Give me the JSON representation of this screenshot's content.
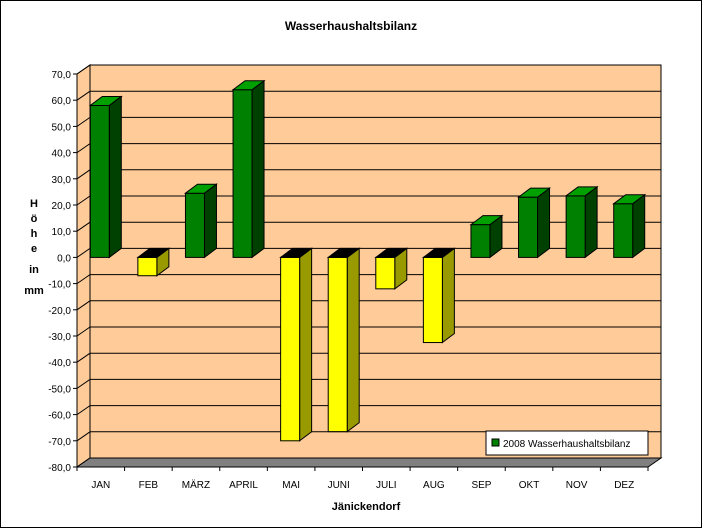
{
  "chart_data": {
    "type": "bar",
    "title": "Wasserhaushaltsbilanz",
    "xlabel": "Jänickendorf",
    "ylabel": "Höhe in mm",
    "categories": [
      "JAN",
      "FEB",
      "MÄRZ",
      "APRIL",
      "MAI",
      "JUNI",
      "JULI",
      "AUG",
      "SEP",
      "OKT",
      "NOV",
      "DEZ"
    ],
    "series": [
      {
        "name": "2008 Wasserhaushaltsbilanz",
        "values": [
          58.0,
          -7.0,
          24.5,
          64.0,
          -70.0,
          -66.5,
          -12.0,
          -32.5,
          12.5,
          23.0,
          23.5,
          20.5
        ]
      }
    ],
    "ylim": [
      -80,
      70
    ],
    "yticks": [
      "70,0",
      "60,0",
      "50,0",
      "40,0",
      "30,0",
      "20,0",
      "10,0",
      "0,0",
      "-10,0",
      "-20,0",
      "-30,0",
      "-40,0",
      "-50,0",
      "-60,0",
      "-70,0",
      "-80,0"
    ],
    "grid": true,
    "legend_position": "bottom-right",
    "colors": {
      "plot_background": "#FFCC99",
      "positive_front": "#008000",
      "positive_side": "#004000",
      "positive_top": "#00A000",
      "negative_front": "#FFFF00",
      "negative_side": "#999900",
      "negative_top": "#000000",
      "floor": "#808080",
      "gridline": "#000000"
    }
  }
}
